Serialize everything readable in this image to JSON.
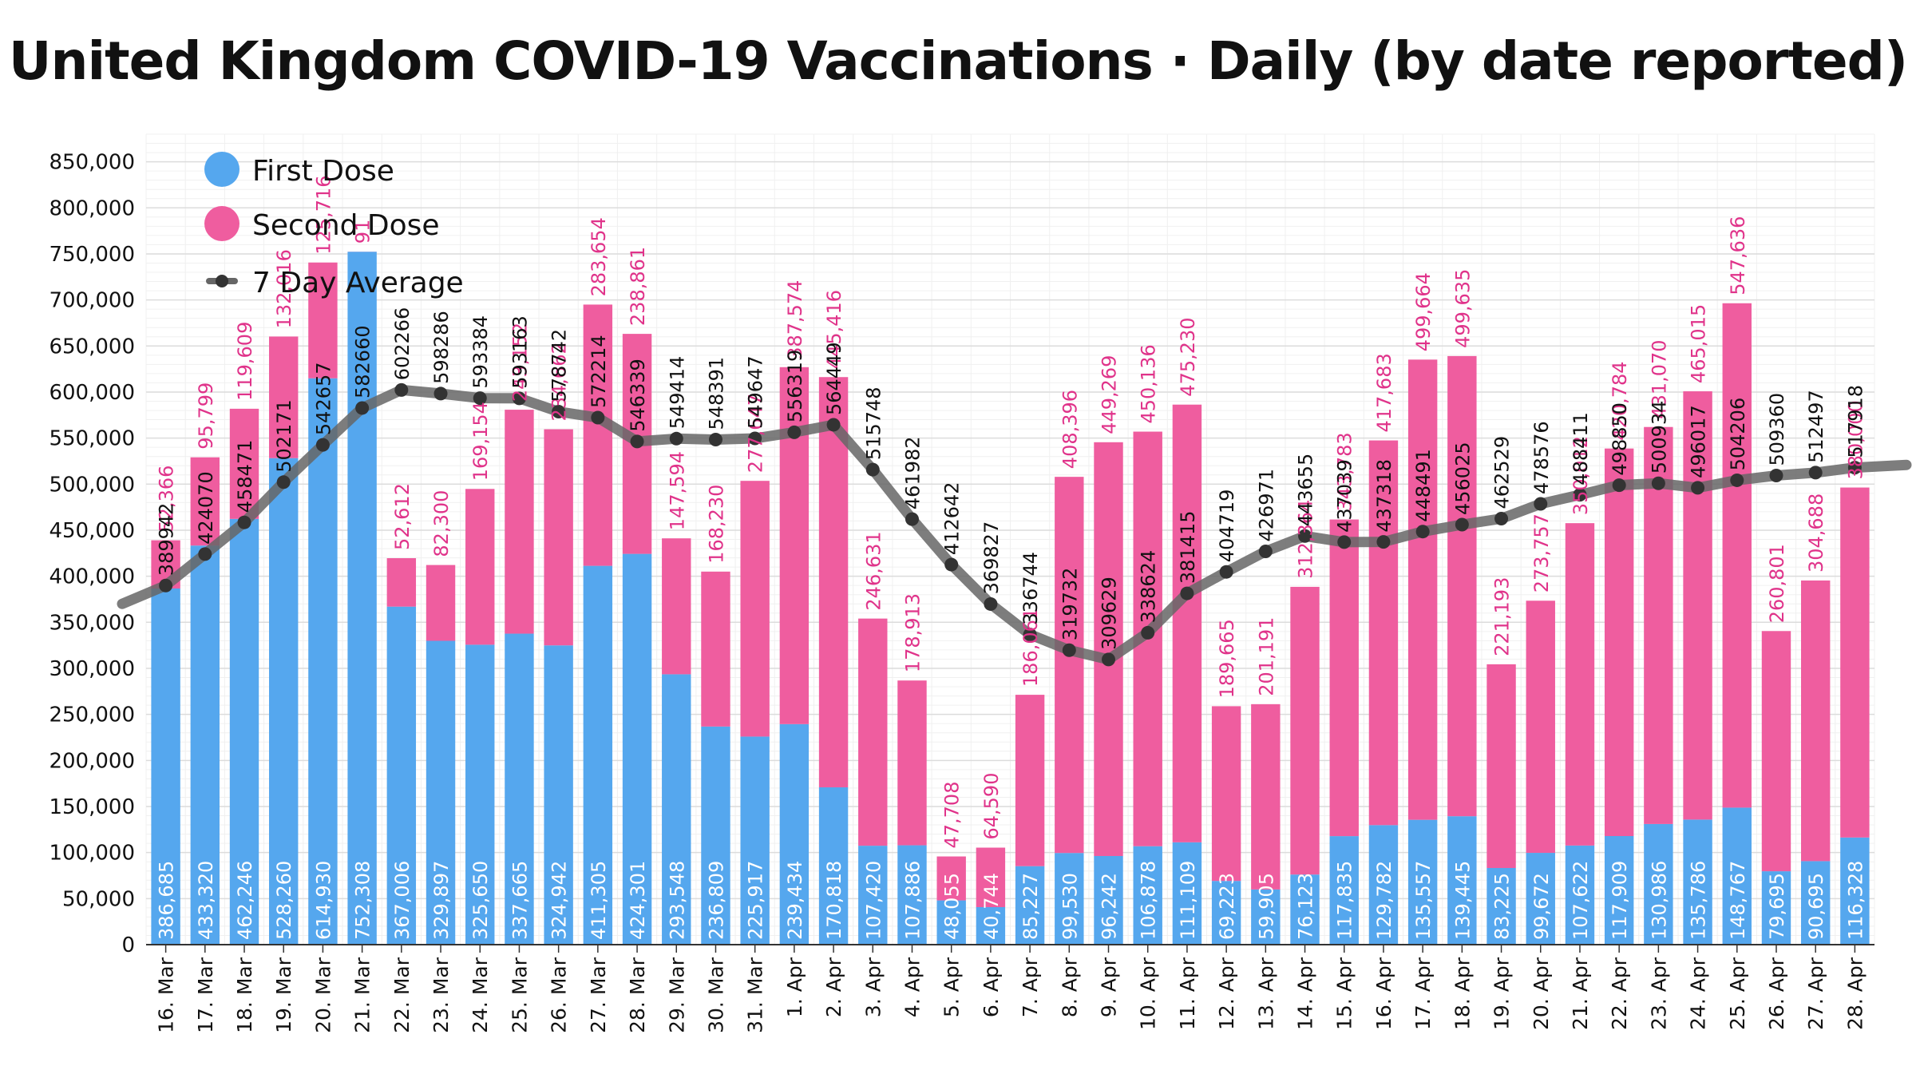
{
  "chart_data": {
    "type": "bar",
    "stacked": true,
    "title": "United Kingdom COVID-19 Vaccinations · Daily (by date reported)",
    "xlabel": "",
    "ylabel": "",
    "ylim": [
      0,
      880000
    ],
    "yticks": [
      0,
      50000,
      100000,
      150000,
      200000,
      250000,
      300000,
      350000,
      400000,
      450000,
      500000,
      550000,
      600000,
      650000,
      700000,
      750000,
      800000,
      850000
    ],
    "ytick_labels": [
      "0",
      "50,000",
      "100,000",
      "150,000",
      "200,000",
      "250,000",
      "300,000",
      "350,000",
      "400,000",
      "450,000",
      "500,000",
      "550,000",
      "600,000",
      "650,000",
      "700,000",
      "750,000",
      "800,000",
      "850,000"
    ],
    "grid": true,
    "legend_position": "top-left",
    "categories": [
      "16. Mar",
      "17. Mar",
      "18. Mar",
      "19. Mar",
      "20. Mar",
      "21. Mar",
      "22. Mar",
      "23. Mar",
      "24. Mar",
      "25. Mar",
      "26. Mar",
      "27. Mar",
      "28. Mar",
      "29. Mar",
      "30. Mar",
      "31. Mar",
      "1. Apr",
      "2. Apr",
      "3. Apr",
      "4. Apr",
      "5. Apr",
      "6. Apr",
      "7. Apr",
      "8. Apr",
      "9. Apr",
      "10. Apr",
      "11. Apr",
      "12. Apr",
      "13. Apr",
      "14. Apr",
      "15. Apr",
      "16. Apr",
      "17. Apr",
      "18. Apr",
      "19. Apr",
      "20. Apr",
      "21. Apr",
      "22. Apr",
      "23. Apr",
      "24. Apr",
      "25. Apr",
      "26. Apr",
      "27. Apr",
      "28. Apr"
    ],
    "series": [
      {
        "name": "First Dose",
        "color": "#55a7ee",
        "values": [
          386685,
          433320,
          462246,
          528260,
          614930,
          752308,
          367006,
          329897,
          325650,
          337665,
          324942,
          411305,
          424301,
          293548,
          236809,
          225917,
          239434,
          170818,
          107420,
          107886,
          48055,
          40744,
          85227,
          99530,
          96242,
          106878,
          111109,
          69223,
          59905,
          76123,
          117835,
          129782,
          135557,
          139445,
          83225,
          99672,
          107622,
          117909,
          130986,
          135786,
          148767,
          79695,
          90695,
          116328
        ],
        "labels": [
          "386,685",
          "433,320",
          "462,246",
          "528,260",
          "614,930",
          "752,308",
          "367,006",
          "329,897",
          "325,650",
          "337,665",
          "324,942",
          "411,305",
          "424,301",
          "293,548",
          "236,809",
          "225,917",
          "239,434",
          "170,818",
          "107,420",
          "107,886",
          "48,055",
          "40,744",
          "85,227",
          "99,530",
          "96,242",
          "106,878",
          "111,109",
          "69,223",
          "59,905",
          "76,123",
          "117,835",
          "129,782",
          "135,557",
          "139,445",
          "83,225",
          "99,672",
          "107,622",
          "117,909",
          "130,986",
          "135,786",
          "148,767",
          "79,695",
          "90,695",
          "116,328"
        ]
      },
      {
        "name": "Second Dose",
        "color": "#ef5d9f",
        "label_color": "#e0338a",
        "values": [
          52366,
          95799,
          119609,
          132016,
          125716,
          91,
          52612,
          82300,
          169154,
          243152,
          234662,
          283654,
          238861,
          147594,
          168230,
          277647,
          387574,
          445416,
          246631,
          178913,
          47708,
          64590,
          186061,
          408396,
          449269,
          450136,
          475230,
          189665,
          201191,
          312364,
          343783,
          417683,
          499664,
          499635,
          221193,
          273757,
          350012,
          420784,
          431070,
          465015,
          547636,
          260801,
          304688,
          380000
        ],
        "labels": [
          "52,366",
          "95,799",
          "119,609",
          "132,016",
          "125,716",
          "91",
          "52,612",
          "82,300",
          "169,154",
          "243,152",
          "234,662",
          "283,654",
          "238,861",
          "147,594",
          "168,230",
          "277,647",
          "387,574",
          "445,416",
          "246,631",
          "178,913",
          "47,708",
          "64,590",
          "186,061",
          "408,396",
          "449,269",
          "450,136",
          "475,230",
          "189,665",
          "201,191",
          "312,364",
          "343,783",
          "417,683",
          "499,664",
          "499,635",
          "221,193",
          "273,757",
          "350,012",
          "420,784",
          "431,070",
          "465,015",
          "547,636",
          "260,801",
          "304,688",
          "380,000"
        ]
      },
      {
        "name": "7 Day Average",
        "type": "line",
        "color": "#666666",
        "values": [
          389942,
          424070,
          458471,
          502171,
          542657,
          582660,
          602266,
          598286,
          593384,
          593163,
          578742,
          572214,
          546339,
          549414,
          548391,
          549647,
          556319,
          564449,
          515748,
          461982,
          412642,
          369827,
          336744,
          319732,
          309629,
          338624,
          381415,
          404719,
          426971,
          443655,
          437039,
          437318,
          448491,
          456025,
          462529,
          478576,
          488411,
          498850,
          500934,
          496017,
          504206,
          509360,
          512497,
          517918
        ],
        "labels": [
          "389942",
          "424070",
          "458471",
          "502171",
          "542657",
          "582660",
          "602266",
          "598286",
          "593384",
          "593163",
          "578742",
          "572214",
          "546339",
          "549414",
          "548391",
          "549647",
          "556319",
          "564449",
          "515748",
          "461982",
          "412642",
          "369827",
          "336744",
          "319732",
          "309629",
          "338624",
          "381415",
          "404719",
          "426971",
          "443655",
          "437039",
          "437318",
          "448491",
          "456025",
          "462529",
          "478576",
          "488411",
          "498850",
          "500934",
          "496017",
          "504206",
          "509360",
          "512497",
          "517918"
        ],
        "start_value": 370000
      }
    ]
  },
  "legend": {
    "first": "First Dose",
    "second": "Second Dose",
    "avg": "7 Day Average"
  }
}
